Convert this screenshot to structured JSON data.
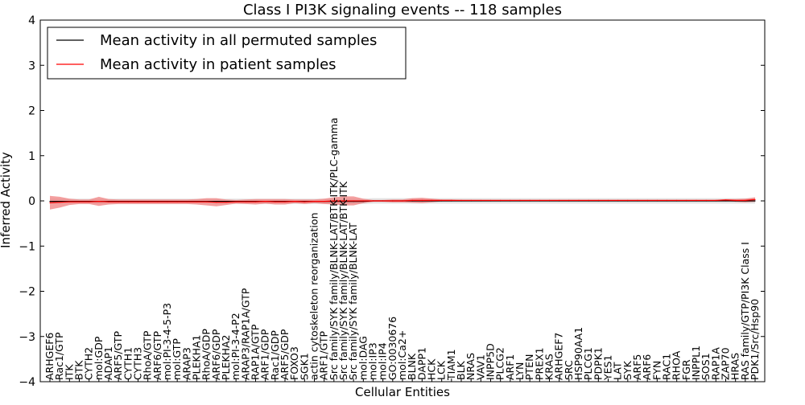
{
  "chart_data": {
    "type": "line",
    "title": "Class I PI3K signaling events -- 118 samples",
    "xlabel": "Cellular Entities",
    "ylabel": "Inferred Activity",
    "ylim": [
      -4,
      4
    ],
    "yticks": [
      -4,
      -3,
      -2,
      -1,
      0,
      1,
      2,
      3,
      4
    ],
    "grid": false,
    "legend_position": "top-left",
    "categories": [
      "ARHGEF6",
      "Rac1/GTP",
      "ITK",
      "BTK",
      "CYTH2",
      "mol:GDP",
      "ADAP1",
      "ARF5/GTP",
      "CYTH1",
      "CYTH3",
      "RhoA/GTP",
      "ARF6/GTP",
      "mol:PI-3-4-5-P3",
      "mol:GTP",
      "ARAP3",
      "PLEKHA1",
      "RhoA/GDP",
      "ARF6/GDP",
      "PLEKHA2",
      "mol:PI-3-4-P2",
      "ARAP3/RAP1A/GTP",
      "RAP1A/GTP",
      "ARF1/GDP",
      "Rac1/GDP",
      "ARF5/GDP",
      "FOXO3",
      "SGK1",
      "actin cytoskeleton reorganization",
      "ARF1/GTP",
      "Src family/SYK family/BLNK-LAT/BTK-ITK/PLC-gamma",
      "Src family/SYK family/BLNK-LAT/BTK-ITK",
      "Src family/SYK family/BLNK-LAT",
      "mol:DAG",
      "mol:IP3",
      "mol:IP4",
      "GO:0030676",
      "mol:Ca2+",
      "BLNK",
      "DAPP1",
      "HCK",
      "LCK",
      "TIAM1",
      "BLK",
      "NRAS",
      "VAV1",
      "INPP5D",
      "PLCG2",
      "ARF1",
      "LYN",
      "PTEN",
      "PREX1",
      "KRAS",
      "ARHGEF7",
      "SRC",
      "HSP90AA1",
      "PLCG1",
      "PDPK1",
      "YES1",
      "LAT",
      "SYK",
      "ARF5",
      "ARF6",
      "FYN",
      "RAC1",
      "RHOA",
      "FGR",
      "INPPL1",
      "SOS1",
      "RAP1A",
      "ZAP70",
      "HRAS",
      "RAS family/GTP/PI3K Class I",
      "PDK1/Src/Hsp90"
    ],
    "series": [
      {
        "name": "Mean activity in all permuted samples",
        "color": "#000000",
        "values": [
          -0.01,
          -0.01,
          -0.01,
          -0.01,
          -0.01,
          -0.01,
          -0.01,
          -0.01,
          -0.01,
          -0.01,
          -0.01,
          -0.01,
          -0.01,
          -0.01,
          -0.01,
          -0.01,
          -0.01,
          -0.01,
          -0.01,
          -0.01,
          -0.01,
          -0.01,
          -0.01,
          -0.01,
          -0.01,
          -0.01,
          -0.01,
          -0.01,
          -0.01,
          -0.01,
          -0.01,
          -0.01,
          -0.01,
          0,
          0,
          0,
          0,
          0,
          0,
          0,
          0,
          0,
          0,
          0,
          0,
          0,
          0,
          0,
          0,
          0,
          0,
          0,
          0,
          0,
          0,
          0,
          0,
          0,
          0,
          0,
          0,
          0,
          0,
          0,
          0,
          0,
          0,
          0,
          0,
          0,
          0,
          0,
          0
        ],
        "band": [
          0.06,
          0.06,
          0.06,
          0.06,
          0.06,
          0.06,
          0.06,
          0.06,
          0.06,
          0.06,
          0.06,
          0.06,
          0.06,
          0.06,
          0.06,
          0.06,
          0.06,
          0.06,
          0.06,
          0.06,
          0.06,
          0.06,
          0.06,
          0.06,
          0.06,
          0.06,
          0.06,
          0.06,
          0.06,
          0.06,
          0.06,
          0.06,
          0.06,
          0.06,
          0.06,
          0.06,
          0.06,
          0.06,
          0.06,
          0.06,
          0.06,
          0.06,
          0.06,
          0.06,
          0.06,
          0.06,
          0.06,
          0.06,
          0.06,
          0.06,
          0.06,
          0.06,
          0.06,
          0.06,
          0.06,
          0.06,
          0.06,
          0.06,
          0.06,
          0.06,
          0.06,
          0.06,
          0.06,
          0.06,
          0.06,
          0.06,
          0.06,
          0.06,
          0.06,
          0.06,
          0.06,
          0.06,
          0.06
        ]
      },
      {
        "name": "Mean activity in patient samples",
        "color": "#ff0000",
        "fill": "#f08080",
        "values": [
          -0.04,
          -0.03,
          -0.02,
          -0.02,
          -0.02,
          -0.01,
          -0.02,
          -0.02,
          -0.02,
          -0.02,
          -0.02,
          -0.02,
          -0.02,
          -0.02,
          -0.02,
          -0.02,
          -0.02,
          -0.03,
          -0.03,
          -0.02,
          -0.02,
          -0.02,
          -0.01,
          -0.02,
          -0.02,
          -0.01,
          -0.02,
          -0.01,
          -0.01,
          0,
          0,
          0,
          0,
          0,
          0,
          0,
          0,
          0.01,
          0.01,
          0.01,
          0.01,
          0.01,
          0.01,
          0.01,
          0.01,
          0.01,
          0.01,
          0.01,
          0.01,
          0.01,
          0.01,
          0.01,
          0.01,
          0.01,
          0.01,
          0.01,
          0.01,
          0.01,
          0.01,
          0.01,
          0.01,
          0.01,
          0.01,
          0.01,
          0.01,
          0.01,
          0.01,
          0.01,
          0.01,
          0.02,
          0.01,
          0.01,
          0.03
        ],
        "band": [
          0.15,
          0.12,
          0.07,
          0.05,
          0.05,
          0.1,
          0.06,
          0.05,
          0.05,
          0.05,
          0.05,
          0.05,
          0.05,
          0.05,
          0.05,
          0.06,
          0.08,
          0.09,
          0.06,
          0.04,
          0.05,
          0.06,
          0.05,
          0.06,
          0.06,
          0.04,
          0.05,
          0.04,
          0.06,
          0.08,
          0.1,
          0.1,
          0.05,
          0.02,
          0.02,
          0.03,
          0.03,
          0.05,
          0.06,
          0.04,
          0.02,
          0.02,
          0.01,
          0.01,
          0.01,
          0.01,
          0.01,
          0.01,
          0.01,
          0.01,
          0.01,
          0.01,
          0.01,
          0.01,
          0.01,
          0.01,
          0.01,
          0.01,
          0.01,
          0.01,
          0.01,
          0.01,
          0.01,
          0.01,
          0.01,
          0.01,
          0.01,
          0.01,
          0.01,
          0.02,
          0.03,
          0.04,
          0.05
        ]
      }
    ]
  }
}
